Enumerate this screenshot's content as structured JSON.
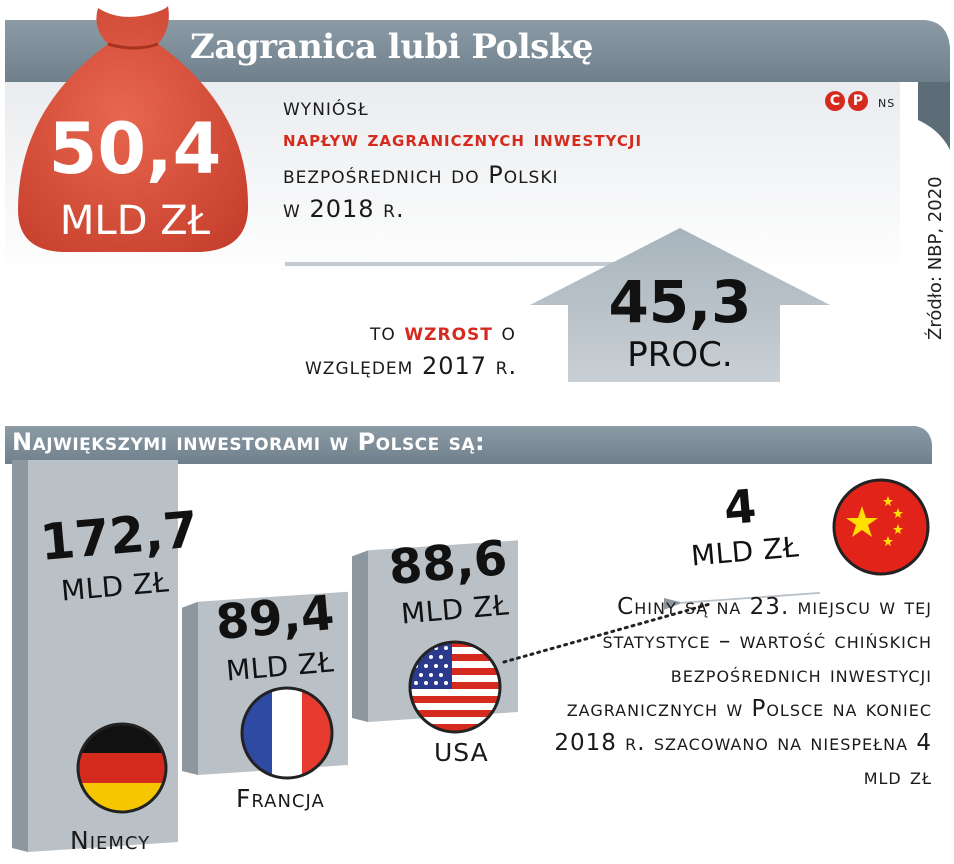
{
  "header": {
    "title": "Zagranica lubi Polskę",
    "logo_letters": "CP",
    "author": "ns"
  },
  "headline": {
    "value": "50,4",
    "unit": "MLD ZŁ",
    "line1": "wyniósł",
    "line2": "napływ zagranicznych inwestycji",
    "line3": "bezpośrednich do Polski",
    "line4": "w 2018 r."
  },
  "growth": {
    "value": "45,3",
    "unit": "PROC.",
    "line1_a": "to",
    "line1_b": "wzrost",
    "line1_c": "o",
    "line2": "względem 2017 r."
  },
  "source": "Źródło: NBP, 2020",
  "section_title": "Największymi inwestorami w Polsce są:",
  "chart_data": {
    "type": "bar",
    "title": "Największymi inwestorami w Polsce są:",
    "unit": "MLD ZŁ",
    "categories": [
      "Niemcy",
      "Francja",
      "USA",
      "Chiny"
    ],
    "values": [
      172.7,
      89.4,
      88.6,
      4
    ],
    "value_labels": [
      "172,7",
      "89,4",
      "88,6",
      "4"
    ],
    "annotation": "Chiny są na 23. miejscu w tej statystyce – wartość chińskich bezpośrednich inwestycji zagranicznych w Polsce na koniec 2018 r. szacowano na niespełna 4 mld zł"
  },
  "colors": {
    "banner": "#7f909d",
    "bag": "#d9503c",
    "bar_front": "#b9c0c6",
    "bar_side": "#8d979f",
    "accent_red": "#d52b1e"
  }
}
